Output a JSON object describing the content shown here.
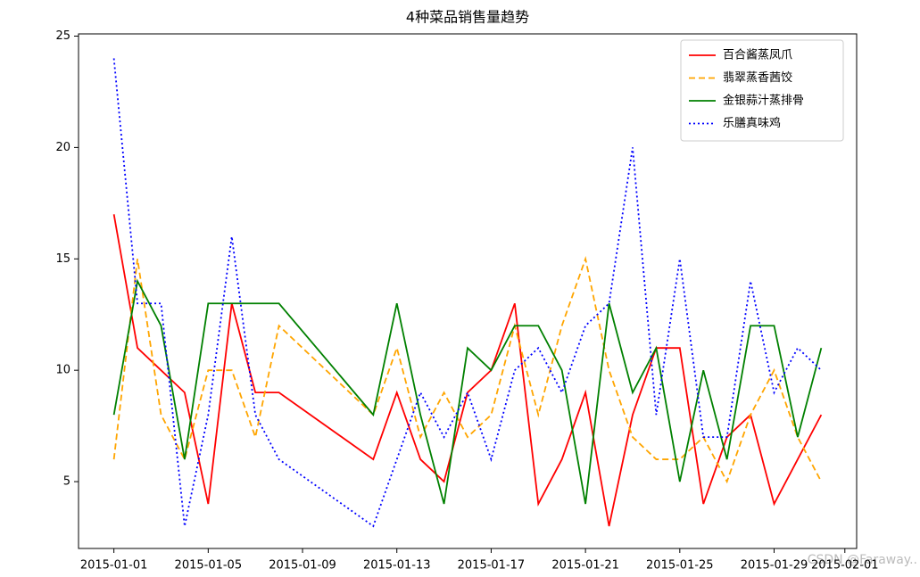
{
  "chart_data": {
    "type": "line",
    "title": "4种菜品销售量趋势",
    "x": [
      "2015-01-01",
      "2015-01-02",
      "2015-01-03",
      "2015-01-04",
      "2015-01-05",
      "2015-01-06",
      "2015-01-07",
      "2015-01-08",
      "2015-01-12",
      "2015-01-13",
      "2015-01-14",
      "2015-01-15",
      "2015-01-16",
      "2015-01-17",
      "2015-01-18",
      "2015-01-19",
      "2015-01-20",
      "2015-01-21",
      "2015-01-22",
      "2015-01-23",
      "2015-01-24",
      "2015-01-25",
      "2015-01-26",
      "2015-01-27",
      "2015-01-28",
      "2015-01-29",
      "2015-01-30",
      "2015-01-31"
    ],
    "series": [
      {
        "name": "百合酱蒸凤爪",
        "color": "red",
        "linestyle": "solid",
        "values": [
          17,
          11,
          10,
          9,
          4,
          13,
          9,
          9,
          6,
          9,
          6,
          5,
          9,
          10,
          13,
          4,
          6,
          9,
          3,
          8,
          11,
          11,
          4,
          7,
          8,
          4,
          6,
          8
        ]
      },
      {
        "name": "翡翠蒸香茜饺",
        "color": "orange",
        "linestyle": "dashed",
        "values": [
          6,
          15,
          8,
          6,
          10,
          10,
          7,
          12,
          8,
          11,
          7,
          9,
          7,
          8,
          12,
          8,
          12,
          15,
          10,
          7,
          6,
          6,
          7,
          5,
          8,
          10,
          7,
          5
        ]
      },
      {
        "name": "金银蒜汁蒸排骨",
        "color": "green",
        "linestyle": "solid",
        "values": [
          8,
          14,
          12,
          6,
          13,
          13,
          13,
          13,
          8,
          13,
          8,
          4,
          11,
          10,
          12,
          12,
          10,
          4,
          13,
          9,
          11,
          5,
          10,
          6,
          12,
          12,
          7,
          11
        ]
      },
      {
        "name": "乐膳真味鸡",
        "color": "blue",
        "linestyle": "dotted",
        "values": [
          24,
          13,
          13,
          3,
          8,
          16,
          8,
          6,
          3,
          6,
          9,
          7,
          9,
          6,
          10,
          11,
          9,
          12,
          13,
          20,
          8,
          15,
          7,
          7,
          14,
          9,
          11,
          10
        ]
      }
    ],
    "xlim": [
      "2014-12-30T12:00",
      "2015-02-01T12:00"
    ],
    "xticks": [
      "2015-01-01",
      "2015-01-05",
      "2015-01-09",
      "2015-01-13",
      "2015-01-17",
      "2015-01-21",
      "2015-01-25",
      "2015-01-29",
      "2015-02-01"
    ],
    "ylim": [
      2,
      25.1
    ],
    "yticks": [
      5,
      10,
      15,
      20,
      25
    ],
    "legend": "upper right",
    "grid": false,
    "watermark": "CSDN @Faraway.."
  }
}
